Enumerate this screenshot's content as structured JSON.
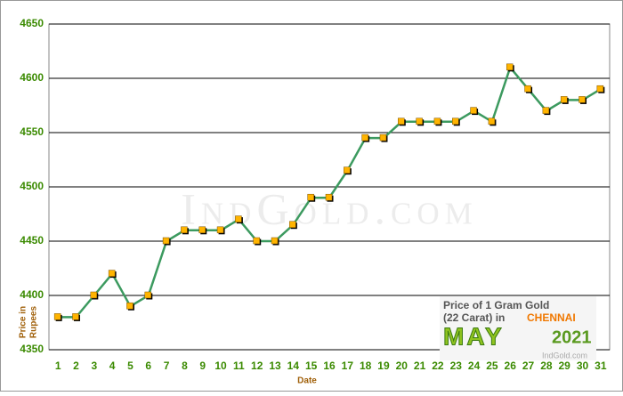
{
  "chart_data": {
    "type": "line",
    "categories": [
      "1",
      "2",
      "3",
      "4",
      "5",
      "6",
      "7",
      "8",
      "9",
      "10",
      "11",
      "12",
      "13",
      "14",
      "15",
      "16",
      "17",
      "18",
      "19",
      "20",
      "21",
      "22",
      "23",
      "24",
      "25",
      "26",
      "27",
      "28",
      "29",
      "30",
      "31"
    ],
    "series": [
      {
        "name": "Price of 1 Gram Gold",
        "color": "#3c9a5f",
        "values": [
          4380,
          4380,
          4400,
          4420,
          4390,
          4400,
          4450,
          4460,
          4460,
          4460,
          4470,
          4450,
          4450,
          4465,
          4490,
          4490,
          4515,
          4545,
          4545,
          4560,
          4560,
          4560,
          4560,
          4570,
          4560,
          4610,
          4590,
          4570,
          4580,
          4580,
          4590
        ]
      }
    ],
    "marker_color": "#ffb400",
    "ylim": [
      4350,
      4650
    ],
    "yticks": [
      4350,
      4400,
      4450,
      4500,
      4550,
      4600,
      4650
    ],
    "grid": true,
    "xlabel": "Date",
    "ylabel": [
      "Price in",
      "Rupees"
    ],
    "watermark": "IndGold.com",
    "caption": {
      "line1": "Price of 1 Gram Gold",
      "line2": "(22 Carat) in",
      "city": "CHENNAI",
      "month": "MAY",
      "year": "2021",
      "site": "IndGold.com"
    }
  }
}
